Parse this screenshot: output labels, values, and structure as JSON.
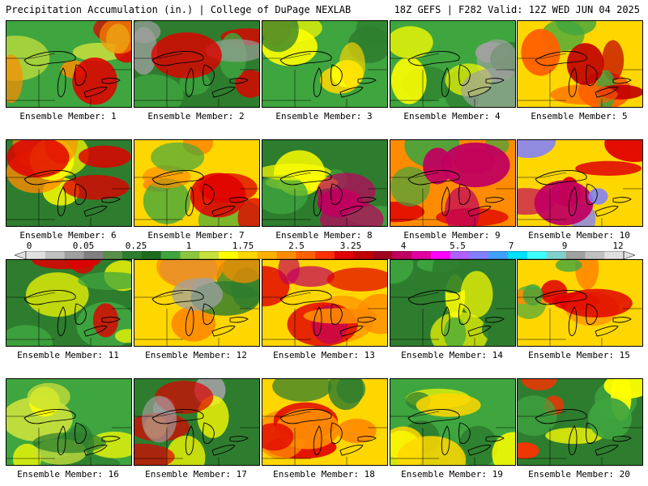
{
  "header": {
    "left": "Precipitation Accumulation (in.) | College of DuPage NEXLAB",
    "right": "18Z GEFS | F282 Valid: 12Z WED JUN 04 2025"
  },
  "members": [
    "Ensemble Member: 1",
    "Ensemble Member: 2",
    "Ensemble Member: 3",
    "Ensemble Member: 4",
    "Ensemble Member: 5",
    "Ensemble Member: 6",
    "Ensemble Member: 7",
    "Ensemble Member: 8",
    "Ensemble Member: 9",
    "Ensemble Member: 10",
    "Ensemble Member: 11",
    "Ensemble Member: 12",
    "Ensemble Member: 13",
    "Ensemble Member: 14",
    "Ensemble Member: 15",
    "Ensemble Member: 16",
    "Ensemble Member: 17",
    "Ensemble Member: 18",
    "Ensemble Member: 19",
    "Ensemble Member: 20"
  ],
  "colorbar": {
    "labels": [
      "0",
      "0.05",
      "0.25",
      "1",
      "1.75",
      "2.5",
      "3.25",
      "4",
      "5.5",
      "7",
      "9",
      "12"
    ],
    "colors": [
      "#e0e0e0",
      "#c0c0c0",
      "#a0a0a0",
      "#808080",
      "#5a8f4a",
      "#2e7d2e",
      "#1e6b1e",
      "#3fa53f",
      "#8cc63f",
      "#c8e03c",
      "#ffff00",
      "#ffd700",
      "#ffb000",
      "#ff8c00",
      "#ff6000",
      "#ff3000",
      "#e00000",
      "#c00000",
      "#a00020",
      "#c00060",
      "#e000a0",
      "#ff00ff",
      "#b060ff",
      "#8080ff",
      "#40a0ff",
      "#00e0ff",
      "#40ffff",
      "#80d0d0",
      "#a0a0a0",
      "#c0c0c0",
      "#e0e0e0"
    ]
  },
  "fields": [
    [
      "#3fa53f",
      "#c8e03c",
      "#ff8c00",
      "#e00000"
    ],
    [
      "#2e7d2e",
      "#3fa53f",
      "#a0a0a0",
      "#e00000"
    ],
    [
      "#3fa53f",
      "#ffff00",
      "#ffd700",
      "#2e7d2e"
    ],
    [
      "#3fa53f",
      "#2e7d2e",
      "#ffff00",
      "#a0a0a0"
    ],
    [
      "#ffd700",
      "#3fa53f",
      "#ff6000",
      "#c00000"
    ],
    [
      "#2e7d2e",
      "#ffff00",
      "#ff8c00",
      "#e00000"
    ],
    [
      "#ffd700",
      "#ff8c00",
      "#3fa53f",
      "#e00000"
    ],
    [
      "#2e7d2e",
      "#3fa53f",
      "#ffff00",
      "#c00060"
    ],
    [
      "#ff8c00",
      "#e00000",
      "#3fa53f",
      "#c00060"
    ],
    [
      "#ffd700",
      "#e00000",
      "#c00060",
      "#8080ff"
    ],
    [
      "#2e7d2e",
      "#3fa53f",
      "#ffff00",
      "#e00000"
    ],
    [
      "#ffd700",
      "#2e7d2e",
      "#ff8c00",
      "#a0a0a0"
    ],
    [
      "#ffd700",
      "#ff8c00",
      "#e00000",
      "#c00060"
    ],
    [
      "#2e7d2e",
      "#3fa53f",
      "#ffff00",
      "#2e7d2e"
    ],
    [
      "#ffd700",
      "#3fa53f",
      "#ff8c00",
      "#e00000"
    ],
    [
      "#3fa53f",
      "#ffff00",
      "#2e7d2e",
      "#c8e03c"
    ],
    [
      "#2e7d2e",
      "#a0a0a0",
      "#ffff00",
      "#e00000"
    ],
    [
      "#ffd700",
      "#e00000",
      "#2e7d2e",
      "#ff8c00"
    ],
    [
      "#3fa53f",
      "#ffff00",
      "#2e7d2e",
      "#ffd700"
    ],
    [
      "#2e7d2e",
      "#ffff00",
      "#3fa53f",
      "#ff3000"
    ]
  ]
}
